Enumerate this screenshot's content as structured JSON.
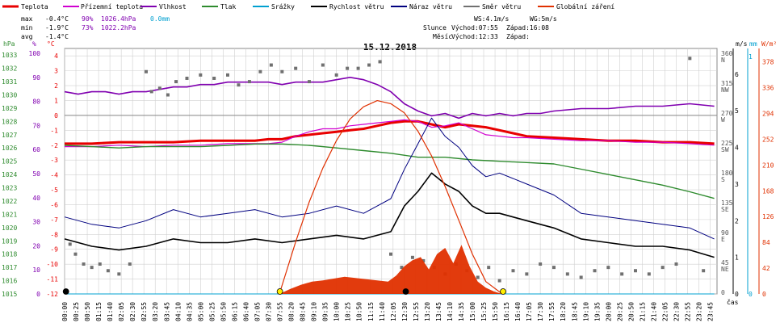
{
  "legend": [
    {
      "label": "Teplota",
      "color": "#e80000"
    },
    {
      "label": "Přízemní teplota",
      "color": "#d000d0"
    },
    {
      "label": "Vlhkost",
      "color": "#8000b0"
    },
    {
      "label": "Tlak",
      "color": "#2e8b2e"
    },
    {
      "label": "Srážky",
      "color": "#00a0d0"
    },
    {
      "label": "Rychlost větru",
      "color": "#000000"
    },
    {
      "label": "Náraz větru",
      "color": "#000080"
    },
    {
      "label": "Směr větru",
      "color": "#707070"
    },
    {
      "label": "Globální záření",
      "color": "#e03000"
    }
  ],
  "stats": {
    "max": {
      "label": "max",
      "temp": "-0.4°C",
      "hum": "90%",
      "press": "1026.4hPa",
      "rain": "0.0mm"
    },
    "min": {
      "label": "min",
      "temp": "-1.9°C",
      "hum": "73%",
      "press": "1022.2hPa"
    },
    "avg": {
      "label": "avg",
      "temp": "-1.4°C"
    }
  },
  "wind_info": {
    "ws": "WS:4.1m/s",
    "wg": "WG:5m/s"
  },
  "sun": {
    "label": "Slunce",
    "rise": "Východ:07:55",
    "set": "Západ:16:08"
  },
  "moon": {
    "label": "Měsíc",
    "rise": "Východ:12:33",
    "set": "Západ:"
  },
  "date_title": "15.12.2018",
  "axis_units": {
    "hpa": "hPa",
    "pct": "%",
    "degc": "°C",
    "ms": "m/s",
    "mm": "mm",
    "wm2": "W/m²",
    "cas": "čas"
  },
  "colors": {
    "temperature": "#e80000",
    "ground_temp": "#d000d0",
    "humidity": "#8000b0",
    "pressure": "#2e8b2e",
    "rain": "#00a0d0",
    "wind_speed": "#000000",
    "wind_gust": "#000080",
    "wind_dir": "#707070",
    "radiation": "#e03000",
    "sun_marker": "#ffee00",
    "grid": "#d0d0d0"
  },
  "chart_data": {
    "type": "line",
    "title": "15.12.2018",
    "x_ticks": [
      "00:00",
      "00:25",
      "00:50",
      "01:15",
      "01:40",
      "02:05",
      "02:30",
      "02:55",
      "03:20",
      "03:45",
      "04:10",
      "04:35",
      "05:00",
      "05:25",
      "05:50",
      "06:15",
      "06:40",
      "07:05",
      "07:30",
      "07:55",
      "08:20",
      "08:45",
      "09:10",
      "09:35",
      "10:00",
      "10:25",
      "10:50",
      "11:15",
      "11:40",
      "12:05",
      "12:30",
      "12:55",
      "13:20",
      "13:45",
      "14:10",
      "14:35",
      "15:00",
      "15:25",
      "15:50",
      "16:15",
      "16:40",
      "17:05",
      "17:30",
      "17:55",
      "18:20",
      "18:45",
      "19:10",
      "19:35",
      "20:00",
      "20:25",
      "20:50",
      "21:15",
      "21:40",
      "22:05",
      "22:30",
      "22:55",
      "23:20",
      "23:45"
    ],
    "xlabel": "čas",
    "y_axes": {
      "pressure_hpa": {
        "ticks": [
          "1015",
          "1016",
          "1017",
          "1018",
          "1019",
          "1020",
          "1021",
          "1022",
          "1023",
          "1024",
          "1025",
          "1026",
          "1027",
          "1028",
          "1029",
          "1030",
          "1031",
          "1032",
          "1033"
        ],
        "ylim": [
          1015,
          1033.5
        ]
      },
      "humidity_pct": {
        "ticks": [
          "0",
          "10",
          "20",
          "30",
          "40",
          "50",
          "60",
          "70",
          "80",
          "90",
          "100"
        ],
        "ylim": [
          0,
          102
        ]
      },
      "temp_c": {
        "ticks": [
          "-12",
          "-11",
          "-10",
          "-9",
          "-8",
          "-7",
          "-6",
          "-5",
          "-4",
          "-3",
          "-2",
          "-1",
          "0",
          "1",
          "2",
          "3",
          "4"
        ],
        "ylim": [
          -12,
          4.5
        ]
      },
      "wind_ms": {
        "ticks": [
          "0",
          "1",
          "2",
          "3",
          "4",
          "5",
          "6"
        ],
        "ylim": [
          0,
          6.7
        ]
      },
      "direction": {
        "ticks": [
          "0",
          "45",
          "90",
          "135",
          "180",
          "225",
          "270",
          "315",
          "360"
        ],
        "names": [
          "",
          "NE",
          "E",
          "SE",
          "S",
          "SW",
          "W",
          "NW",
          "N"
        ],
        "ylim": [
          0,
          370
        ]
      },
      "radiation_wm2": {
        "ticks": [
          "0",
          "42",
          "84",
          "126",
          "168",
          "210",
          "252",
          "294",
          "336",
          "378"
        ],
        "ylim": [
          0,
          400
        ]
      },
      "rain_mm": {
        "ticks": [
          "0",
          "1"
        ],
        "ylim": [
          0,
          1
        ]
      }
    },
    "series": [
      {
        "name": "Teplota",
        "axis": "temp_c",
        "x": [
          0,
          1,
          2,
          3,
          4,
          5,
          6,
          7,
          7.5,
          8,
          8.5,
          9,
          9.5,
          10,
          10.5,
          11,
          11.5,
          12,
          12.5,
          13,
          13.5,
          14,
          14.5,
          15,
          15.5,
          16,
          16.5,
          17,
          18,
          19,
          20,
          21,
          22,
          23,
          23.9
        ],
        "y": [
          -1.9,
          -1.9,
          -1.8,
          -1.8,
          -1.8,
          -1.7,
          -1.7,
          -1.7,
          -1.6,
          -1.6,
          -1.4,
          -1.3,
          -1.2,
          -1.1,
          -1.0,
          -0.9,
          -0.7,
          -0.5,
          -0.4,
          -0.4,
          -0.6,
          -0.8,
          -0.6,
          -0.7,
          -0.8,
          -1.0,
          -1.2,
          -1.4,
          -1.5,
          -1.6,
          -1.7,
          -1.7,
          -1.8,
          -1.8,
          -1.9
        ]
      },
      {
        "name": "Přízemní teplota",
        "axis": "temp_c",
        "x": [
          0,
          1,
          2,
          3,
          4,
          5,
          6,
          7,
          7.5,
          8,
          8.5,
          9,
          9.5,
          10,
          10.5,
          11,
          11.5,
          12,
          12.5,
          13,
          13.5,
          14,
          14.5,
          15,
          15.5,
          16,
          16.5,
          17,
          18,
          19,
          20,
          21,
          22,
          23,
          23.9
        ],
        "y": [
          -2.1,
          -2.1,
          -2.0,
          -2.1,
          -2.0,
          -2.0,
          -1.9,
          -1.9,
          -1.9,
          -1.8,
          -1.4,
          -1.1,
          -0.9,
          -0.9,
          -0.7,
          -0.6,
          -0.5,
          -0.4,
          -0.3,
          -0.4,
          -0.8,
          -0.7,
          -0.5,
          -0.9,
          -1.3,
          -1.4,
          -1.5,
          -1.5,
          -1.6,
          -1.7,
          -1.7,
          -1.8,
          -1.8,
          -1.9,
          -2.0
        ]
      },
      {
        "name": "Vlhkost",
        "axis": "humidity_pct",
        "x": [
          0,
          0.5,
          1,
          1.5,
          2,
          2.5,
          3,
          3.5,
          4,
          4.5,
          5,
          5.5,
          6,
          6.5,
          7,
          7.5,
          8,
          8.5,
          9,
          9.5,
          10,
          10.5,
          11,
          11.5,
          12,
          12.5,
          13,
          13.5,
          14,
          14.5,
          15,
          15.5,
          16,
          16.5,
          17,
          17.5,
          18,
          19,
          20,
          21,
          22,
          23,
          23.9
        ],
        "y": [
          84,
          83,
          84,
          84,
          83,
          84,
          84,
          85,
          86,
          86,
          87,
          87,
          88,
          88,
          88,
          88,
          87,
          88,
          88,
          88,
          89,
          90,
          89,
          87,
          84,
          79,
          76,
          74,
          75,
          73,
          75,
          74,
          75,
          74,
          75,
          75,
          76,
          77,
          77,
          78,
          78,
          79,
          78
        ]
      },
      {
        "name": "Tlak",
        "axis": "pressure_hpa",
        "x": [
          0,
          1,
          2,
          3,
          4,
          5,
          6,
          7,
          8,
          9,
          10,
          11,
          12,
          13,
          14,
          15,
          16,
          17,
          18,
          19,
          20,
          21,
          22,
          23,
          23.9
        ],
        "y": [
          1026.2,
          1026.1,
          1026.0,
          1026.1,
          1026.1,
          1026.1,
          1026.2,
          1026.3,
          1026.3,
          1026.2,
          1026.0,
          1025.8,
          1025.6,
          1025.3,
          1025.3,
          1025.1,
          1025.0,
          1024.9,
          1024.8,
          1024.4,
          1024.0,
          1023.6,
          1023.2,
          1022.7,
          1022.2
        ]
      },
      {
        "name": "Srážky",
        "axis": "rain_mm",
        "x": [
          0,
          23.9
        ],
        "y": [
          0.0,
          0.0
        ]
      },
      {
        "name": "Rychlost větru",
        "axis": "wind_ms",
        "x": [
          0,
          1,
          2,
          3,
          4,
          5,
          6,
          7,
          8,
          9,
          10,
          11,
          12,
          12.5,
          13,
          13.5,
          14,
          14.5,
          15,
          15.5,
          16,
          17,
          18,
          19,
          20,
          21,
          22,
          23,
          23.9
        ],
        "y": [
          1.5,
          1.3,
          1.2,
          1.3,
          1.5,
          1.4,
          1.4,
          1.5,
          1.4,
          1.5,
          1.6,
          1.5,
          1.7,
          2.4,
          2.8,
          3.3,
          3.0,
          2.8,
          2.4,
          2.2,
          2.2,
          2.0,
          1.8,
          1.5,
          1.4,
          1.3,
          1.3,
          1.2,
          1.0
        ]
      },
      {
        "name": "Náraz větru",
        "axis": "wind_ms",
        "x": [
          0,
          1,
          2,
          3,
          4,
          5,
          6,
          7,
          8,
          9,
          10,
          11,
          12,
          12.5,
          13,
          13.5,
          14,
          14.5,
          15,
          15.5,
          16,
          17,
          18,
          19,
          20,
          21,
          22,
          23,
          23.9
        ],
        "y": [
          2.1,
          1.9,
          1.8,
          2.0,
          2.3,
          2.1,
          2.2,
          2.3,
          2.1,
          2.2,
          2.4,
          2.2,
          2.6,
          3.4,
          4.1,
          4.8,
          4.3,
          4.0,
          3.5,
          3.2,
          3.3,
          3.0,
          2.7,
          2.2,
          2.1,
          2.0,
          1.9,
          1.8,
          1.5
        ]
      },
      {
        "name": "Směr větru",
        "axis": "direction",
        "style": "points",
        "x": [
          0.2,
          0.4,
          0.7,
          1.0,
          1.3,
          1.6,
          2.0,
          2.4,
          3.0,
          3.2,
          3.5,
          3.8,
          4.1,
          4.5,
          5.0,
          5.5,
          6.0,
          6.4,
          6.8,
          7.2,
          7.6,
          8.0,
          8.5,
          9.0,
          9.5,
          10.0,
          10.4,
          10.8,
          11.2,
          11.6,
          12.0,
          12.4,
          12.8,
          13.2,
          13.6,
          14.0,
          14.4,
          14.8,
          15.2,
          15.6,
          16.0,
          16.5,
          17.0,
          17.5,
          18.0,
          18.5,
          19.0,
          19.5,
          20.0,
          20.5,
          21.0,
          21.5,
          22.0,
          22.5,
          23.0,
          23.5
        ],
        "y": [
          75,
          60,
          45,
          40,
          45,
          35,
          30,
          45,
          335,
          305,
          310,
          300,
          320,
          325,
          330,
          325,
          330,
          315,
          320,
          335,
          345,
          335,
          340,
          320,
          345,
          330,
          340,
          340,
          345,
          350,
          60,
          40,
          55,
          50,
          40,
          30,
          45,
          35,
          25,
          40,
          20,
          35,
          30,
          45,
          40,
          30,
          25,
          35,
          40,
          30,
          35,
          30,
          40,
          45,
          355,
          35
        ]
      },
      {
        "name": "Globální záření",
        "axis": "radiation_wm2",
        "style": "area",
        "x": [
          7.9,
          8.3,
          8.7,
          9.1,
          9.5,
          9.9,
          10.3,
          10.7,
          11.1,
          11.5,
          11.9,
          12.2,
          12.5,
          12.8,
          13.1,
          13.4,
          13.7,
          14.0,
          14.3,
          14.6,
          14.9,
          15.2,
          15.5,
          15.8,
          16.1
        ],
        "y": [
          0,
          8,
          15,
          20,
          22,
          25,
          28,
          26,
          24,
          22,
          20,
          30,
          45,
          55,
          60,
          40,
          65,
          75,
          50,
          80,
          45,
          20,
          10,
          4,
          0
        ]
      },
      {
        "name": "Globální záření (teoretické)",
        "axis": "radiation_wm2",
        "style": "curve",
        "x": [
          7.9,
          8.5,
          9.0,
          9.5,
          10.0,
          10.5,
          11.0,
          11.5,
          12.0,
          12.5,
          13.0,
          13.5,
          14.0,
          14.5,
          15.0,
          15.5,
          16.1
        ],
        "y": [
          0,
          85,
          150,
          205,
          250,
          285,
          305,
          315,
          310,
          295,
          265,
          225,
          175,
          120,
          65,
          20,
          0
        ]
      }
    ],
    "markers": [
      {
        "name": "Východ slunce",
        "x": 7.92,
        "color": "#ffee00"
      },
      {
        "name": "Západ slunce",
        "x": 16.13,
        "color": "#ffee00"
      },
      {
        "name": "Východ měsíce",
        "x": 12.55,
        "color": "#000000"
      },
      {
        "name": "Západ měsíce",
        "x": 0.05,
        "color": "#000000"
      }
    ]
  }
}
